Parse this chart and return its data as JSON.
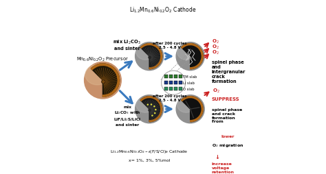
{
  "title_top": "Li$_{1.2}$Mn$_{0.6}$Ni$_{0.2}$O$_2$ Cathode",
  "title_bottom_1": "Li$_{1.2}$Mn$_{0.6}$Ni$_{0.2}$O$_{2-\\delta}$(F/S/Cl)$_\\delta$ Cathode",
  "title_bottom_2": "x= 1%, 3%, 5%mol",
  "label_precursor": "Mn$_{0.6}$Ni$_{0.2}$O$_2$ Precursor",
  "arrow_top_label": "mix Li$_2$CO$_3$\nand sinter",
  "arrow_bot_label": "mix\nLi$_2$CO$_3$ with\nLiF/Li$_2$S/LiCl\nand sinter",
  "after_cycles_top": "after 200 cycles\n2.5 - 4.8 V",
  "after_cycles_bot": "after 200 cycles\n2.5 - 4.8 V",
  "crystal_labels": [
    "TM slab",
    "Li slab",
    "O slab"
  ],
  "right_top_label": "spinel phase\nand\nintergranular\ncrack\nformation",
  "right_bot_label_red": "SUPPRESS",
  "right_bot_label_black1": "spinel phase\nand crack\nformation\nfrom ",
  "right_bot_label_lower": "lower",
  "right_bot_label_black2": "\nO$_2$ migration",
  "right_bot_arrow": "↓",
  "right_bot_label_increase": "increase\nvoltage\nretention",
  "o2_label": "O$_2$",
  "bg_color": "#ffffff",
  "sphere_copper": "#c8906a",
  "sphere_copper_light": "#ddb890",
  "sphere_copper_dark": "#a06840",
  "wedge_orange": "#b06818",
  "wedge_inner_dark": "#201808",
  "fan_line_copper": "#7a4a10",
  "sphere_gray": "#909090",
  "sphere_gray_light": "#b8b8b8",
  "sphere_gray_dark": "#606060",
  "wedge_inner_gray": "#181818",
  "fan_line_gray": "#404040",
  "sphere_inner_cracked": "#101010",
  "crack_color": "#c8c8c8",
  "arrow_blue": "#3a7abf",
  "arrow_red": "#cc2222",
  "crystal_green": "#2d7a2d",
  "crystal_blue": "#1a3a8a",
  "crystal_teal": "#2a8a5a"
}
